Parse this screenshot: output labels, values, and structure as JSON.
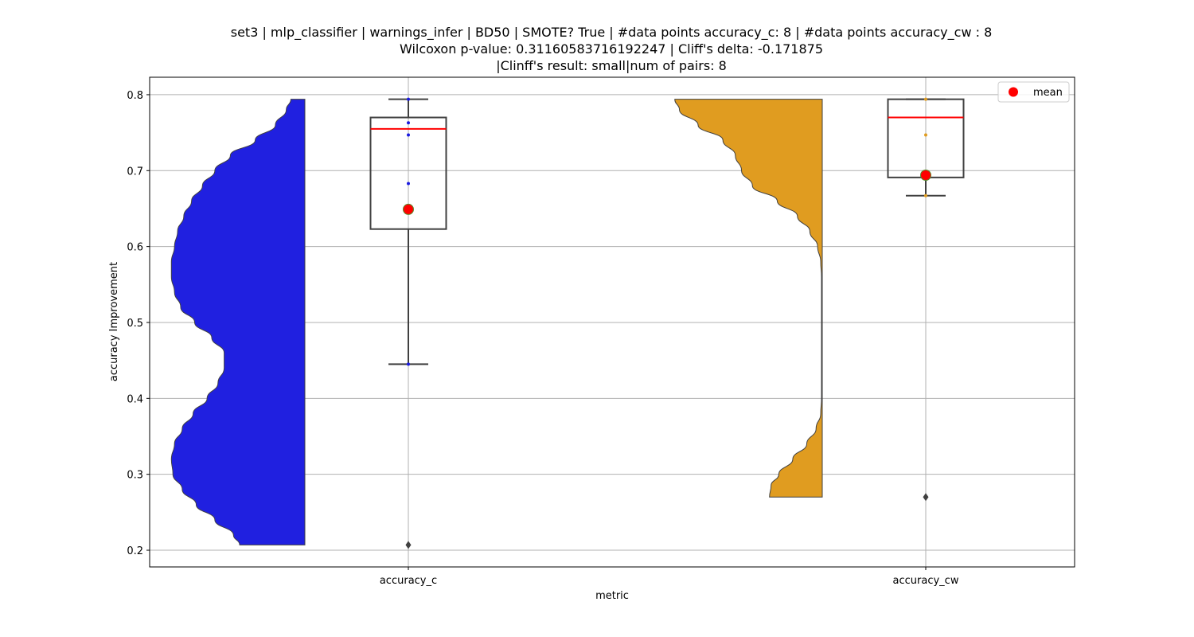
{
  "chart_data": {
    "type": "violin",
    "title_lines": [
      "set3 | mlp_classifier | warnings_infer | BD50 | SMOTE? True | #data points accuracy_c: 8 | #data points accuracy_cw : 8",
      "Wilcoxon p-value: 0.31160583716192247 | Cliff's delta: -0.171875",
      "|Clinff's result: small|num of pairs: 8"
    ],
    "xlabel": "metric",
    "ylabel": "accuracy Improvement",
    "ylim": [
      0.178,
      0.823
    ],
    "yticks": [
      0.2,
      0.3,
      0.4,
      0.5,
      0.6,
      0.7,
      0.8
    ],
    "ytick_labels": [
      "0.2",
      "0.3",
      "0.4",
      "0.5",
      "0.6",
      "0.7",
      "0.8"
    ],
    "grid": true,
    "legend": {
      "placement": "top-right",
      "entries": [
        {
          "label": "mean",
          "marker": "circle",
          "color": "#ff0000"
        }
      ]
    },
    "categories": [
      "accuracy_c",
      "accuracy_cw"
    ],
    "series": [
      {
        "category": "accuracy_c",
        "violin_color": "#2020e0",
        "point_color": "#1a1ae0",
        "violin_density": [
          [
            0.794,
            0.09
          ],
          [
            0.78,
            0.12
          ],
          [
            0.76,
            0.19
          ],
          [
            0.74,
            0.32
          ],
          [
            0.72,
            0.48
          ],
          [
            0.7,
            0.58
          ],
          [
            0.68,
            0.66
          ],
          [
            0.66,
            0.73
          ],
          [
            0.64,
            0.78
          ],
          [
            0.62,
            0.82
          ],
          [
            0.6,
            0.84
          ],
          [
            0.58,
            0.86
          ],
          [
            0.56,
            0.86
          ],
          [
            0.54,
            0.84
          ],
          [
            0.52,
            0.8
          ],
          [
            0.5,
            0.71
          ],
          [
            0.48,
            0.6
          ],
          [
            0.46,
            0.52
          ],
          [
            0.44,
            0.52
          ],
          [
            0.42,
            0.56
          ],
          [
            0.4,
            0.63
          ],
          [
            0.38,
            0.72
          ],
          [
            0.36,
            0.79
          ],
          [
            0.34,
            0.84
          ],
          [
            0.32,
            0.86
          ],
          [
            0.3,
            0.85
          ],
          [
            0.28,
            0.79
          ],
          [
            0.26,
            0.7
          ],
          [
            0.24,
            0.58
          ],
          [
            0.22,
            0.46
          ],
          [
            0.207,
            0.42
          ]
        ],
        "box": {
          "q1": 0.623,
          "median": 0.755,
          "q3": 0.77,
          "whisker_low": 0.445,
          "whisker_high": 0.794
        },
        "mean": 0.649,
        "points": [
          0.794,
          0.763,
          0.747,
          0.683,
          0.445
        ],
        "outliers": [
          0.207
        ]
      },
      {
        "category": "accuracy_cw",
        "violin_color": "#e09c20",
        "point_color": "#e09c20",
        "violin_density": [
          [
            0.794,
            0.95
          ],
          [
            0.78,
            0.92
          ],
          [
            0.76,
            0.8
          ],
          [
            0.74,
            0.64
          ],
          [
            0.72,
            0.56
          ],
          [
            0.7,
            0.52
          ],
          [
            0.68,
            0.45
          ],
          [
            0.66,
            0.29
          ],
          [
            0.64,
            0.16
          ],
          [
            0.62,
            0.08
          ],
          [
            0.6,
            0.03
          ],
          [
            0.58,
            0.01
          ],
          [
            0.56,
            0.005
          ],
          [
            0.5,
            0.005
          ],
          [
            0.45,
            0.005
          ],
          [
            0.4,
            0.005
          ],
          [
            0.38,
            0.01
          ],
          [
            0.36,
            0.04
          ],
          [
            0.34,
            0.1
          ],
          [
            0.32,
            0.19
          ],
          [
            0.3,
            0.28
          ],
          [
            0.285,
            0.33
          ],
          [
            0.27,
            0.34
          ]
        ],
        "box": {
          "q1": 0.691,
          "median": 0.77,
          "q3": 0.794,
          "whisker_low": 0.667,
          "whisker_high": 0.794
        },
        "mean": 0.694,
        "points": [
          0.794,
          0.747,
          0.691,
          0.667
        ],
        "outliers": [
          0.27
        ]
      }
    ]
  }
}
